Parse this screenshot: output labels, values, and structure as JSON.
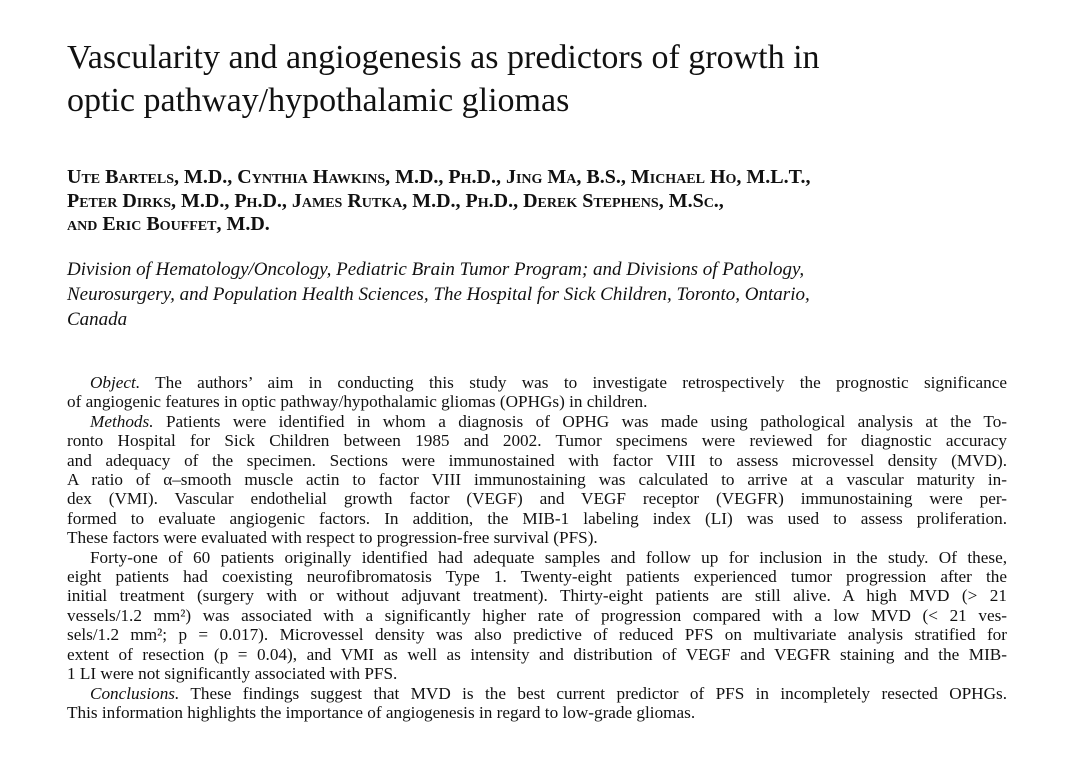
{
  "title": {
    "lines": [
      "Vascularity and angiogenesis as predictors of growth in",
      "optic pathway/hypothalamic gliomas"
    ]
  },
  "authors": {
    "lines": [
      "Ute Bartels, M.D., Cynthia Hawkins, M.D., Ph.D., Jing Ma, B.S., Michael Ho, M.L.T.,",
      "Peter Dirks, M.D., Ph.D., James Rutka, M.D., Ph.D., Derek Stephens, M.Sc.,",
      "and Eric Bouffet, M.D."
    ]
  },
  "affiliation": {
    "lines": [
      "Division of Hematology/Oncology, Pediatric Brain Tumor Program; and Divisions of Pathology,",
      "Neurosurgery, and Population Health Sciences, The Hospital for Sick Children, Toronto, Ontario,",
      "Canada"
    ]
  },
  "abstract": {
    "paragraphs": [
      {
        "label": "Object.",
        "lines": [
          "The authors’ aim in conducting this study was to investigate retrospectively the prognostic significance",
          "of angiogenic features in optic pathway/hypothalamic gliomas (OPHGs) in children."
        ]
      },
      {
        "label": "Methods.",
        "lines": [
          "Patients were identified in whom a diagnosis of OPHG was made using pathological analysis at the To-",
          "ronto Hospital for Sick Children between 1985 and 2002. Tumor specimens were reviewed for diagnostic accuracy",
          "and adequacy of the specimen. Sections were immunostained with factor VIII to assess microvessel density (MVD).",
          "A ratio of α–smooth muscle actin to factor VIII immunostaining was calculated to arrive at a vascular maturity in-",
          "dex (VMI). Vascular endothelial growth factor (VEGF) and VEGF receptor (VEGFR) immunostaining were per-",
          "formed to evaluate angiogenic factors. In addition, the MIB-1 labeling index (LI) was used to assess proliferation.",
          "These factors were evaluated with respect to progression-free survival (PFS)."
        ]
      },
      {
        "lines": [
          "Forty-one of 60 patients originally identified had adequate samples and follow up for inclusion in the study. Of these,",
          "eight patients had coexisting neurofibromatosis Type 1. Twenty-eight patients experienced tumor progression after the",
          "initial treatment (surgery with or without adjuvant treatment). Thirty-eight patients are still alive. A high MVD (> 21",
          "vessels/1.2 mm²) was associated with a significantly higher rate of progression compared with a low MVD (< 21 ves-",
          "sels/1.2 mm²; p = 0.017). Microvessel density was also predictive of reduced PFS on multivariate analysis stratified for",
          "extent of resection (p = 0.04), and VMI as well as intensity and distribution of VEGF and VEGFR staining and the MIB-",
          "1 LI were not significantly associated with PFS."
        ]
      },
      {
        "label": "Conclusions.",
        "lines": [
          "These findings suggest that MVD is the best current predictor of PFS in incompletely resected OPHGs.",
          "This information highlights the importance of angiogenesis in regard to low-grade gliomas."
        ]
      }
    ]
  }
}
